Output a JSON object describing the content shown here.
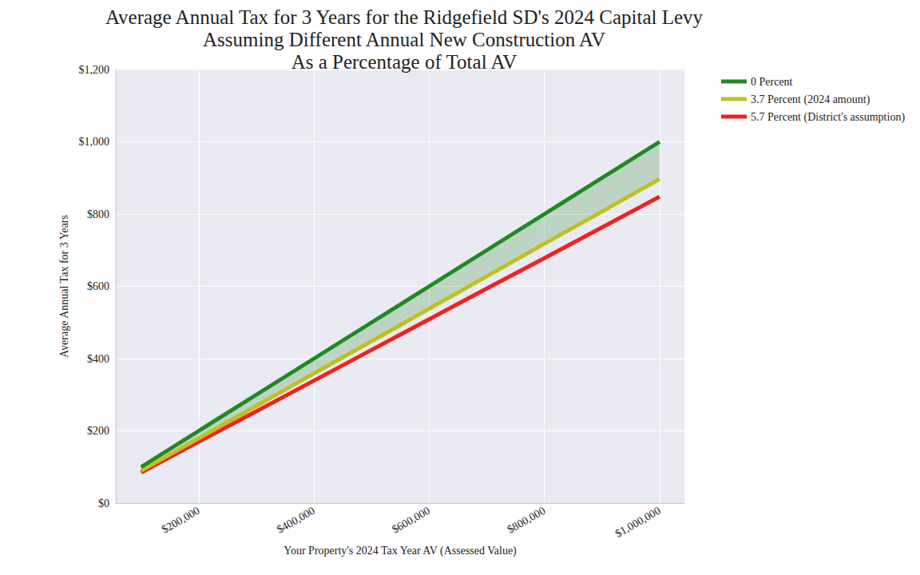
{
  "chart_data": {
    "type": "line",
    "title": "Average Annual Tax for 3 Years for the Ridgefield SD's 2024 Capital Levy\nAssuming Different Annual New Construction AV\nAs a Percentage of Total AV",
    "x_label": "Your Property's 2024 Tax Year AV (Assessed Value)",
    "y_label": "Average Annual Tax for 3 Years",
    "x": [
      100000,
      200000,
      300000,
      400000,
      500000,
      600000,
      700000,
      800000,
      900000,
      1000000
    ],
    "series": [
      {
        "name": "0 Percent",
        "color": "#1f8a22",
        "values": [
          100,
          200,
          300,
          400,
          500,
          600,
          700,
          800,
          900,
          1000
        ]
      },
      {
        "name": "3.7 Percent (2024 amount)",
        "color": "#c0c021",
        "values": [
          89.7,
          179.4,
          269,
          359,
          448,
          538,
          628,
          718,
          807,
          897
        ]
      },
      {
        "name": "5.7 Percent (District's assumption)",
        "color": "#f02222",
        "values": [
          85,
          170,
          254,
          339,
          424,
          509,
          594,
          678,
          763,
          848
        ]
      }
    ],
    "xlim": [
      56000,
      1043000
    ],
    "xticks": [
      {
        "value": 200000,
        "label": "$200,000"
      },
      {
        "value": 400000,
        "label": "$400,000"
      },
      {
        "value": 600000,
        "label": "$600,000"
      },
      {
        "value": 800000,
        "label": "$800,000"
      },
      {
        "value": 1000000,
        "label": "$1,000,000"
      }
    ],
    "ylim": [
      0,
      1200
    ],
    "yticks": [
      {
        "value": 0,
        "label": "$0"
      },
      {
        "value": 200,
        "label": "$200"
      },
      {
        "value": 400,
        "label": "$400"
      },
      {
        "value": 600,
        "label": "$600"
      },
      {
        "value": 800,
        "label": "$800"
      },
      {
        "value": 1000,
        "label": "$1,000"
      },
      {
        "value": 1200,
        "label": "$1,200"
      }
    ],
    "grid": true,
    "legend": "outside upper right"
  }
}
